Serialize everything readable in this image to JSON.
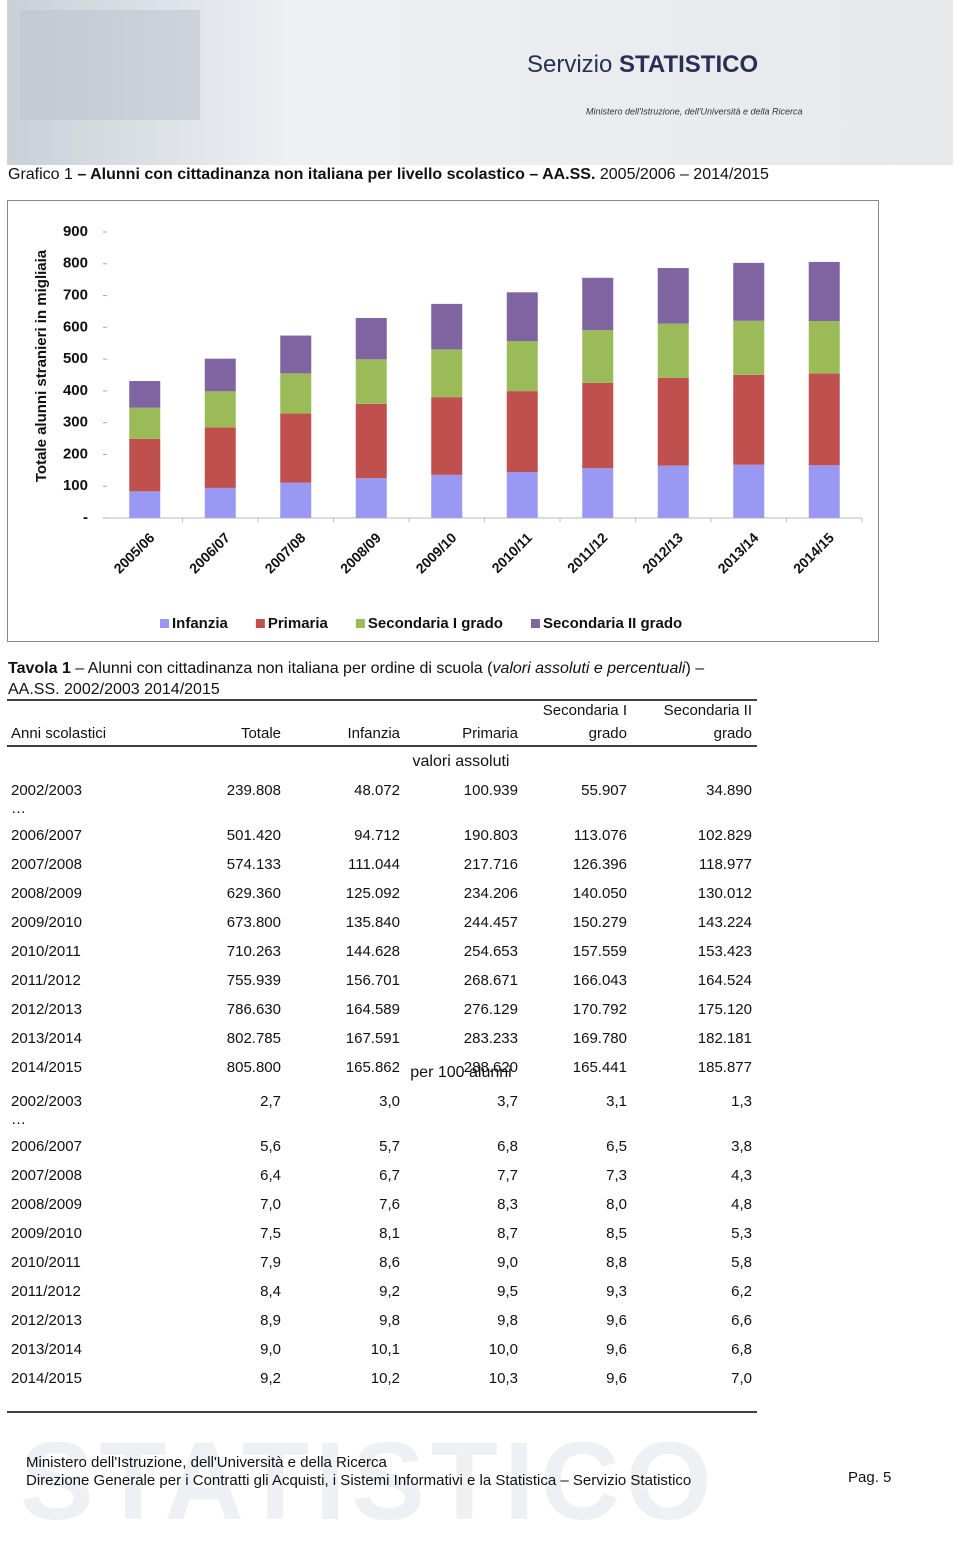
{
  "header": {
    "brand_left": "Servizio",
    "brand_right": "STATISTICO",
    "ministry": "Ministero dell'Istruzione, dell'Università e della Ricerca"
  },
  "figure": {
    "label": "Grafico 1",
    "title": "– Alunni con cittadinanza non italiana per livello scolastico – AA.SS.",
    "period": "2005/2006 – 2014/2015"
  },
  "chart_data": {
    "type": "stacked_bar",
    "ylabel": "Totale alunni stranieri in migliaia",
    "categories": [
      "2005/06",
      "2006/07",
      "2007/08",
      "2008/09",
      "2009/10",
      "2010/11",
      "2011/12",
      "2012/13",
      "2013/14",
      "2014/15"
    ],
    "series": [
      {
        "name": "Infanzia",
        "color": "#9999f4",
        "values": [
          84,
          94.7,
          111.0,
          125.1,
          135.8,
          144.6,
          156.7,
          164.6,
          167.6,
          165.9
        ]
      },
      {
        "name": "Primaria",
        "color": "#c0504d",
        "values": [
          165,
          190.8,
          217.7,
          234.2,
          244.5,
          254.7,
          268.7,
          276.1,
          283.2,
          288.6
        ]
      },
      {
        "name": "Secondaria I grado",
        "color": "#9bbb59",
        "values": [
          98,
          113.1,
          126.4,
          140.1,
          150.3,
          157.6,
          166.0,
          170.8,
          169.8,
          165.4
        ]
      },
      {
        "name": "Secondaria II grado",
        "color": "#8064a2",
        "values": [
          84,
          102.8,
          119.0,
          130.0,
          143.2,
          153.4,
          164.5,
          175.1,
          182.2,
          185.9
        ]
      }
    ],
    "ylim": [
      0,
      900
    ],
    "yticks": [
      {
        "value": 0,
        "label": "-"
      },
      100,
      200,
      300,
      400,
      500,
      600,
      700,
      800,
      900
    ],
    "legend": "bottom"
  },
  "table": {
    "title": {
      "label": "Tavola 1",
      "text": " – Alunni con cittadinanza non italiana per ordine di scuola (",
      "italic": "valori assoluti e percentuali",
      "end": ") –",
      "line2": "AA.SS. 2002/2003 2014/2015"
    },
    "columns": [
      [
        "Anni scolastici"
      ],
      [
        "Totale"
      ],
      [
        "Infanzia"
      ],
      [
        "Primaria"
      ],
      [
        "Secondaria I",
        "grado"
      ],
      [
        "Secondaria II",
        "grado"
      ]
    ],
    "sections": [
      {
        "heading": "valori assoluti",
        "ellipsis": "…",
        "rows": [
          [
            "2002/2003",
            "239.808",
            "48.072",
            "100.939",
            "55.907",
            "34.890"
          ],
          [
            "2006/2007",
            "501.420",
            "94.712",
            "190.803",
            "113.076",
            "102.829"
          ],
          [
            "2007/2008",
            "574.133",
            "111.044",
            "217.716",
            "126.396",
            "118.977"
          ],
          [
            "2008/2009",
            "629.360",
            "125.092",
            "234.206",
            "140.050",
            "130.012"
          ],
          [
            "2009/2010",
            "673.800",
            "135.840",
            "244.457",
            "150.279",
            "143.224"
          ],
          [
            "2010/2011",
            "710.263",
            "144.628",
            "254.653",
            "157.559",
            "153.423"
          ],
          [
            "2011/2012",
            "755.939",
            "156.701",
            "268.671",
            "166.043",
            "164.524"
          ],
          [
            "2012/2013",
            "786.630",
            "164.589",
            "276.129",
            "170.792",
            "175.120"
          ],
          [
            "2013/2014",
            "802.785",
            "167.591",
            "283.233",
            "169.780",
            "182.181"
          ],
          [
            "2014/2015",
            "805.800",
            "165.862",
            "288.620",
            "165.441",
            "185.877"
          ]
        ]
      },
      {
        "heading": "per 100 alunni",
        "ellipsis": "…",
        "rows": [
          [
            "2002/2003",
            "2,7",
            "3,0",
            "3,7",
            "3,1",
            "1,3"
          ],
          [
            "2006/2007",
            "5,6",
            "5,7",
            "6,8",
            "6,5",
            "3,8"
          ],
          [
            "2007/2008",
            "6,4",
            "6,7",
            "7,7",
            "7,3",
            "4,3"
          ],
          [
            "2008/2009",
            "7,0",
            "7,6",
            "8,3",
            "8,0",
            "4,8"
          ],
          [
            "2009/2010",
            "7,5",
            "8,1",
            "8,7",
            "8,5",
            "5,3"
          ],
          [
            "2010/2011",
            "7,9",
            "8,6",
            "9,0",
            "8,8",
            "5,8"
          ],
          [
            "2011/2012",
            "8,4",
            "9,2",
            "9,5",
            "9,3",
            "6,2"
          ],
          [
            "2012/2013",
            "8,9",
            "9,8",
            "9,8",
            "9,6",
            "6,6"
          ],
          [
            "2013/2014",
            "9,0",
            "10,1",
            "10,0",
            "9,6",
            "6,8"
          ],
          [
            "2014/2015",
            "9,2",
            "10,2",
            "10,3",
            "9,6",
            "7,0"
          ]
        ]
      }
    ]
  },
  "footer": {
    "watermark": "STATISTICO",
    "line1": "Ministero dell'Istruzione, dell'Università e della Ricerca",
    "line2": "Direzione Generale  per i Contratti gli Acquisti, i Sistemi Informativi e la Statistica – Servizio Statistico",
    "page": "Pag. 5"
  }
}
